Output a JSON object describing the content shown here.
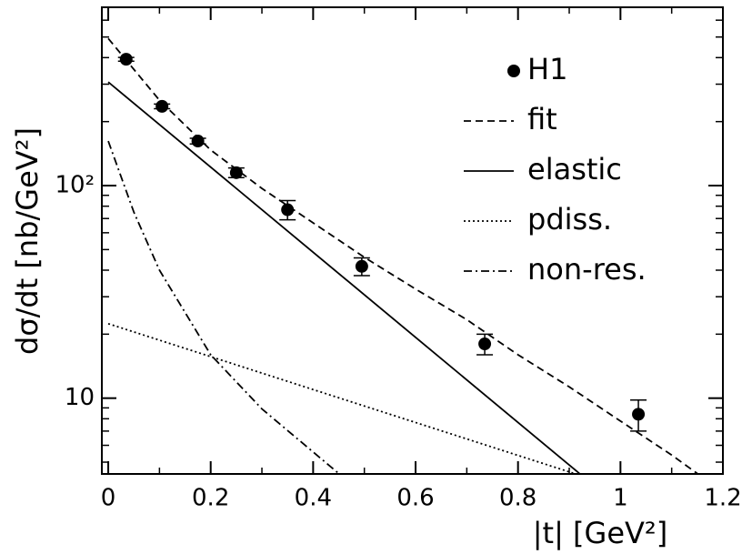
{
  "chart_data": {
    "type": "scatter",
    "xlabel": "|t| [GeV²]",
    "ylabel": "dσ/dt [nb/GeV²]",
    "xlim": [
      -0.0125,
      1.2
    ],
    "ylim": [
      4.4,
      690
    ],
    "yscale": "log",
    "xticks": [
      0,
      0.2,
      0.4,
      0.6,
      0.8,
      1,
      1.2
    ],
    "x_minor_ticks": [
      0.1,
      0.3,
      0.5,
      0.7,
      0.9,
      1.1
    ],
    "yticks": [
      10,
      {
        "value": 100,
        "label": "10²"
      }
    ],
    "y_minor_ticks": [
      5,
      6,
      7,
      8,
      9,
      20,
      30,
      40,
      50,
      60,
      70,
      80,
      90,
      200,
      300,
      400,
      500,
      600
    ],
    "series": [
      {
        "name": "H1",
        "style": "points",
        "color": "#000",
        "x": [
          0.035,
          0.105,
          0.175,
          0.25,
          0.35,
          0.495,
          0.735,
          1.035
        ],
        "values": [
          393,
          236,
          162,
          115,
          77,
          41.7,
          18.0,
          8.4
        ],
        "errors": [
          8,
          6,
          5,
          6,
          8,
          4,
          2,
          1.4
        ]
      },
      {
        "name": "fit",
        "style": "dashed",
        "color": "#000",
        "x": [
          0,
          0.1,
          0.2,
          0.3,
          0.4,
          0.5,
          0.6,
          0.7,
          0.8,
          0.9,
          1.0,
          1.1,
          1.15
        ],
        "values": [
          492,
          252,
          147,
          97,
          66.8,
          46,
          32.6,
          23.4,
          16,
          11.3,
          7.8,
          5.4,
          4.42
        ]
      },
      {
        "name": "elastic",
        "style": "solid",
        "color": "#000",
        "x": [
          0,
          0.92
        ],
        "values": [
          307,
          4.42
        ]
      },
      {
        "name": "pdiss.",
        "style": "dotted",
        "color": "#000",
        "x": [
          0,
          0.91
        ],
        "values": [
          22.4,
          4.42
        ]
      },
      {
        "name": "non-res.",
        "style": "dashdot",
        "color": "#000",
        "x": [
          0,
          0.05,
          0.1,
          0.2,
          0.3,
          0.45
        ],
        "values": [
          162,
          75,
          40,
          16,
          8.9,
          4.42
        ]
      }
    ]
  }
}
